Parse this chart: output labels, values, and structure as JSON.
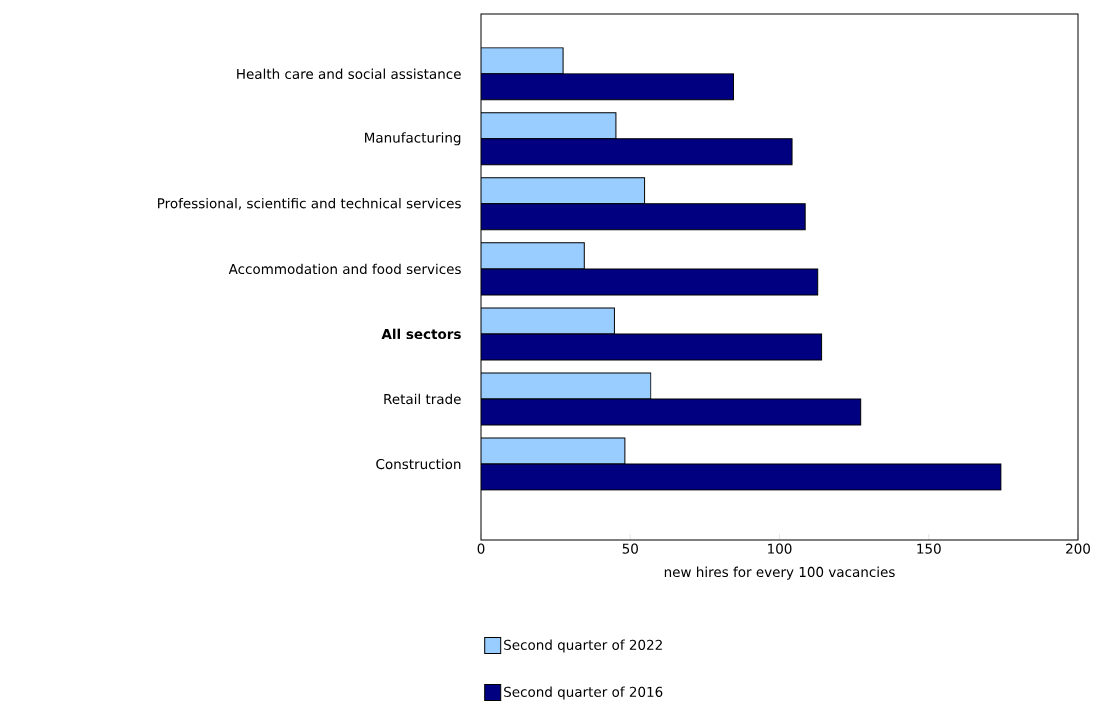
{
  "chart_data": {
    "type": "bar",
    "orientation": "horizontal",
    "categories": [
      "Health care and social assistance",
      "Manufacturing",
      "Professional, scientific and technical services",
      "Accommodation and food services",
      "**All sectors**",
      "Retail trade",
      "Construction"
    ],
    "series": [
      {
        "name": "Second quarter of 2022",
        "color": "#99ccff",
        "values": [
          27.5,
          45.2,
          54.8,
          34.6,
          44.7,
          56.9,
          48.2
        ]
      },
      {
        "name": "Second quarter of 2016",
        "color": "#000080",
        "values": [
          84.6,
          104.2,
          108.6,
          112.8,
          114.1,
          127.2,
          174.2
        ]
      }
    ],
    "xlim": [
      0,
      200
    ],
    "xticks": [
      0,
      50,
      100,
      150,
      200
    ],
    "xlabel": "new hires for every 100 vacancies",
    "legend": "bottom"
  }
}
